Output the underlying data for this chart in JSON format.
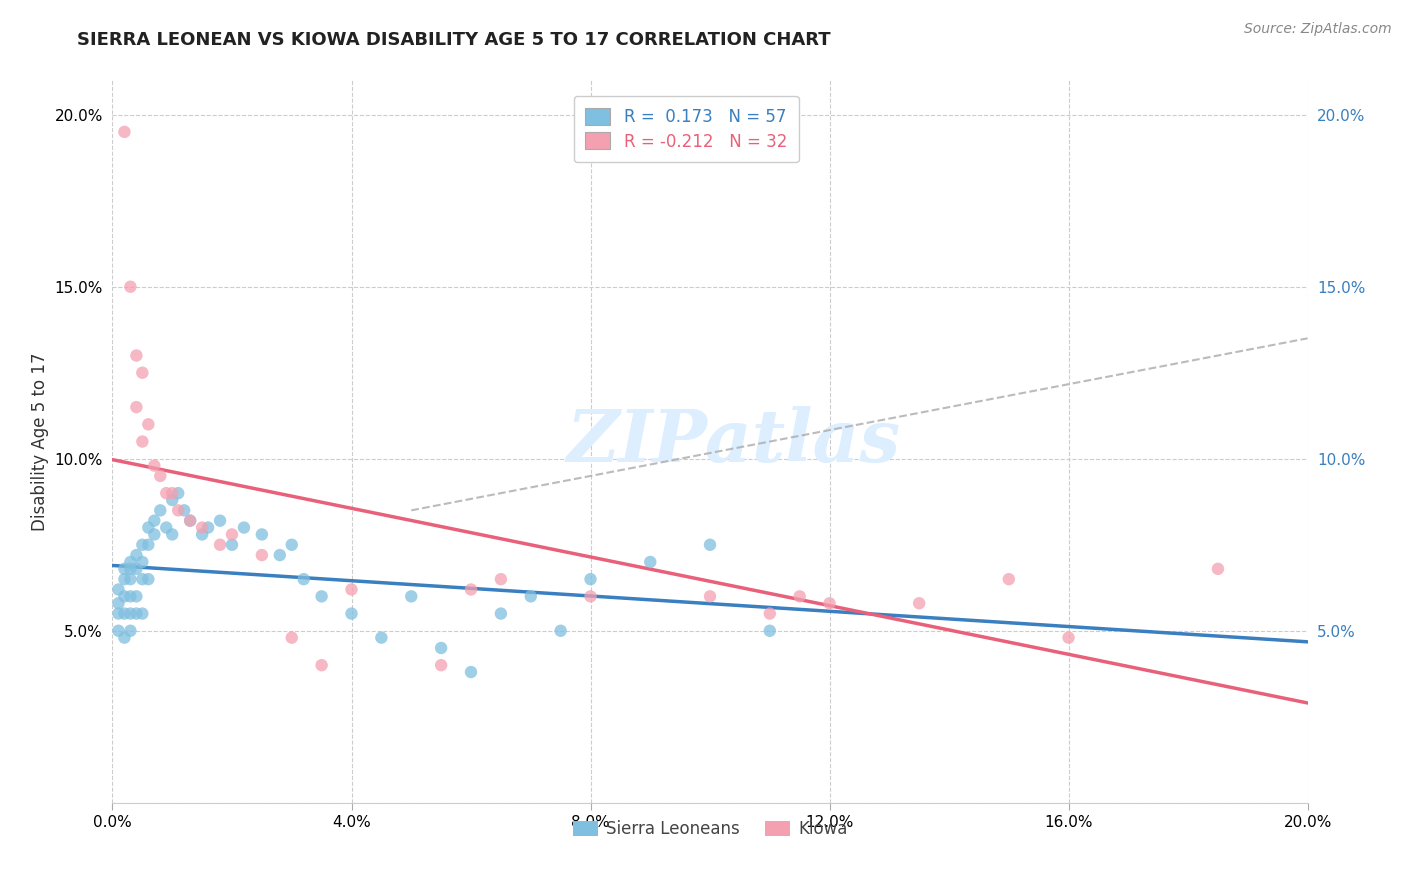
{
  "title": "SIERRA LEONEAN VS KIOWA DISABILITY AGE 5 TO 17 CORRELATION CHART",
  "source_text": "Source: ZipAtlas.com",
  "ylabel": "Disability Age 5 to 17",
  "xlim": [
    0.0,
    0.2
  ],
  "ylim": [
    0.0,
    0.21
  ],
  "sierra_color": "#7fbfdf",
  "kiowa_color": "#f4a0b0",
  "sierra_line_color": "#3a7fbf",
  "kiowa_line_color": "#e8607a",
  "dash_color": "#aaaaaa",
  "background_color": "#ffffff",
  "grid_color": "#cccccc",
  "legend_labels_top": [
    "R =  0.173   N = 57",
    "R = -0.212   N = 32"
  ],
  "legend_labels_bottom": [
    "Sierra Leoneans",
    "Kiowa"
  ],
  "watermark_text": "ZIPatlas",
  "sierra_points_x": [
    0.001,
    0.001,
    0.001,
    0.001,
    0.002,
    0.002,
    0.002,
    0.002,
    0.002,
    0.003,
    0.003,
    0.003,
    0.003,
    0.003,
    0.003,
    0.004,
    0.004,
    0.004,
    0.004,
    0.005,
    0.005,
    0.005,
    0.005,
    0.006,
    0.006,
    0.006,
    0.007,
    0.007,
    0.008,
    0.009,
    0.01,
    0.01,
    0.011,
    0.012,
    0.013,
    0.015,
    0.016,
    0.018,
    0.02,
    0.022,
    0.025,
    0.028,
    0.03,
    0.032,
    0.035,
    0.04,
    0.045,
    0.05,
    0.055,
    0.06,
    0.065,
    0.07,
    0.075,
    0.08,
    0.09,
    0.1,
    0.11
  ],
  "sierra_points_y": [
    0.062,
    0.058,
    0.055,
    0.05,
    0.068,
    0.065,
    0.06,
    0.055,
    0.048,
    0.07,
    0.068,
    0.065,
    0.06,
    0.055,
    0.05,
    0.072,
    0.068,
    0.06,
    0.055,
    0.075,
    0.07,
    0.065,
    0.055,
    0.08,
    0.075,
    0.065,
    0.082,
    0.078,
    0.085,
    0.08,
    0.088,
    0.078,
    0.09,
    0.085,
    0.082,
    0.078,
    0.08,
    0.082,
    0.075,
    0.08,
    0.078,
    0.072,
    0.075,
    0.065,
    0.06,
    0.055,
    0.048,
    0.06,
    0.045,
    0.038,
    0.055,
    0.06,
    0.05,
    0.065,
    0.07,
    0.075,
    0.05
  ],
  "kiowa_points_x": [
    0.002,
    0.003,
    0.004,
    0.004,
    0.005,
    0.005,
    0.006,
    0.007,
    0.008,
    0.009,
    0.01,
    0.011,
    0.013,
    0.015,
    0.018,
    0.02,
    0.025,
    0.03,
    0.035,
    0.04,
    0.055,
    0.06,
    0.065,
    0.08,
    0.1,
    0.11,
    0.115,
    0.12,
    0.135,
    0.15,
    0.16,
    0.185
  ],
  "kiowa_points_y": [
    0.195,
    0.15,
    0.13,
    0.115,
    0.125,
    0.105,
    0.11,
    0.098,
    0.095,
    0.09,
    0.09,
    0.085,
    0.082,
    0.08,
    0.075,
    0.078,
    0.072,
    0.048,
    0.04,
    0.062,
    0.04,
    0.062,
    0.065,
    0.06,
    0.06,
    0.055,
    0.06,
    0.058,
    0.058,
    0.065,
    0.048,
    0.068
  ]
}
